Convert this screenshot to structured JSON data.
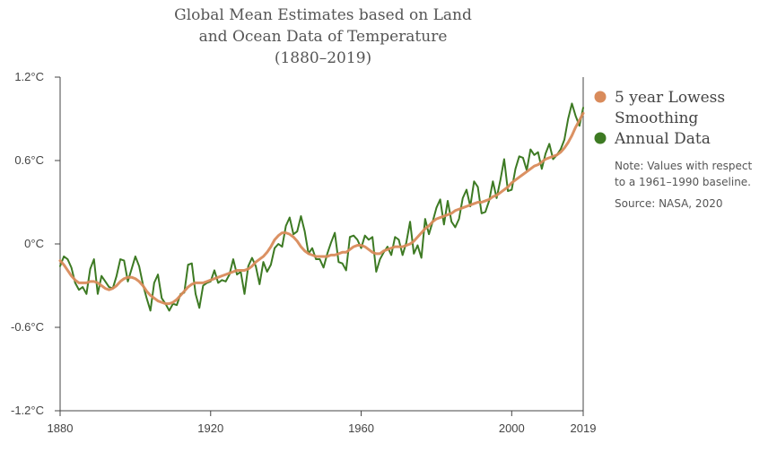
{
  "chart_data": {
    "type": "line",
    "title": [
      "Global Mean Estimates based on Land",
      "and Ocean Data of Temperature",
      "(1880–2019)"
    ],
    "xlabel": "",
    "ylabel": "",
    "xlim": [
      1880,
      2019
    ],
    "ylim": [
      -1.2,
      1.2
    ],
    "x_ticks": [
      {
        "value": 1880,
        "label": "1880"
      },
      {
        "value": 1920,
        "label": "1920"
      },
      {
        "value": 1960,
        "label": "1960"
      },
      {
        "value": 2000,
        "label": "2000"
      },
      {
        "value": 2019,
        "label": "2019"
      }
    ],
    "y_ticks": [
      {
        "value": 1.2,
        "label": "1.2°C"
      },
      {
        "value": 0.6,
        "label": "0.6°C"
      },
      {
        "value": 0,
        "label": "0°C"
      },
      {
        "value": -0.6,
        "label": "-0.6°C"
      },
      {
        "value": -1.2,
        "label": "-1.2°C"
      }
    ],
    "legend_position": "right",
    "grid": false,
    "series": [
      {
        "name": "5 year Lowess Smoothing",
        "color": "#d98b5b",
        "x": [
          1880,
          1881,
          1882,
          1883,
          1884,
          1885,
          1886,
          1887,
          1888,
          1889,
          1890,
          1891,
          1892,
          1893,
          1894,
          1895,
          1896,
          1897,
          1898,
          1899,
          1900,
          1901,
          1902,
          1903,
          1904,
          1905,
          1906,
          1907,
          1908,
          1909,
          1910,
          1911,
          1912,
          1913,
          1914,
          1915,
          1916,
          1917,
          1918,
          1919,
          1920,
          1921,
          1922,
          1923,
          1924,
          1925,
          1926,
          1927,
          1928,
          1929,
          1930,
          1931,
          1932,
          1933,
          1934,
          1935,
          1936,
          1937,
          1938,
          1939,
          1940,
          1941,
          1942,
          1943,
          1944,
          1945,
          1946,
          1947,
          1948,
          1949,
          1950,
          1951,
          1952,
          1953,
          1954,
          1955,
          1956,
          1957,
          1958,
          1959,
          1960,
          1961,
          1962,
          1963,
          1964,
          1965,
          1966,
          1967,
          1968,
          1969,
          1970,
          1971,
          1972,
          1973,
          1974,
          1975,
          1976,
          1977,
          1978,
          1979,
          1980,
          1981,
          1982,
          1983,
          1984,
          1985,
          1986,
          1987,
          1988,
          1989,
          1990,
          1991,
          1992,
          1993,
          1994,
          1995,
          1996,
          1997,
          1998,
          1999,
          2000,
          2001,
          2002,
          2003,
          2004,
          2005,
          2006,
          2007,
          2008,
          2009,
          2010,
          2011,
          2012,
          2013,
          2014,
          2015,
          2016,
          2017,
          2018,
          2019
        ],
        "values": [
          -0.12,
          -0.15,
          -0.19,
          -0.23,
          -0.26,
          -0.28,
          -0.28,
          -0.28,
          -0.27,
          -0.27,
          -0.28,
          -0.3,
          -0.32,
          -0.33,
          -0.32,
          -0.3,
          -0.27,
          -0.25,
          -0.24,
          -0.24,
          -0.25,
          -0.27,
          -0.3,
          -0.34,
          -0.37,
          -0.39,
          -0.41,
          -0.42,
          -0.43,
          -0.43,
          -0.42,
          -0.4,
          -0.37,
          -0.34,
          -0.31,
          -0.29,
          -0.28,
          -0.28,
          -0.28,
          -0.27,
          -0.26,
          -0.25,
          -0.24,
          -0.23,
          -0.22,
          -0.21,
          -0.2,
          -0.19,
          -0.19,
          -0.19,
          -0.18,
          -0.16,
          -0.13,
          -0.11,
          -0.09,
          -0.06,
          -0.02,
          0.03,
          0.06,
          0.08,
          0.08,
          0.07,
          0.05,
          0.02,
          -0.02,
          -0.05,
          -0.07,
          -0.08,
          -0.09,
          -0.09,
          -0.09,
          -0.09,
          -0.08,
          -0.08,
          -0.07,
          -0.06,
          -0.06,
          -0.04,
          -0.02,
          -0.01,
          -0.01,
          -0.02,
          -0.04,
          -0.06,
          -0.07,
          -0.07,
          -0.05,
          -0.04,
          -0.03,
          -0.02,
          -0.02,
          -0.02,
          -0.01,
          0.0,
          0.02,
          0.05,
          0.08,
          0.11,
          0.13,
          0.16,
          0.18,
          0.19,
          0.2,
          0.21,
          0.22,
          0.24,
          0.25,
          0.26,
          0.27,
          0.28,
          0.29,
          0.3,
          0.3,
          0.31,
          0.32,
          0.34,
          0.35,
          0.37,
          0.39,
          0.41,
          0.44,
          0.46,
          0.48,
          0.5,
          0.52,
          0.54,
          0.56,
          0.57,
          0.59,
          0.61,
          0.62,
          0.63,
          0.64,
          0.66,
          0.69,
          0.73,
          0.78,
          0.84,
          0.89,
          0.94
        ]
      },
      {
        "name": "Annual Data",
        "color": "#3d7a23",
        "x": [
          1880,
          1881,
          1882,
          1883,
          1884,
          1885,
          1886,
          1887,
          1888,
          1889,
          1890,
          1891,
          1892,
          1893,
          1894,
          1895,
          1896,
          1897,
          1898,
          1899,
          1900,
          1901,
          1902,
          1903,
          1904,
          1905,
          1906,
          1907,
          1908,
          1909,
          1910,
          1911,
          1912,
          1913,
          1914,
          1915,
          1916,
          1917,
          1918,
          1919,
          1920,
          1921,
          1922,
          1923,
          1924,
          1925,
          1926,
          1927,
          1928,
          1929,
          1930,
          1931,
          1932,
          1933,
          1934,
          1935,
          1936,
          1937,
          1938,
          1939,
          1940,
          1941,
          1942,
          1943,
          1944,
          1945,
          1946,
          1947,
          1948,
          1949,
          1950,
          1951,
          1952,
          1953,
          1954,
          1955,
          1956,
          1957,
          1958,
          1959,
          1960,
          1961,
          1962,
          1963,
          1964,
          1965,
          1966,
          1967,
          1968,
          1969,
          1970,
          1971,
          1972,
          1973,
          1974,
          1975,
          1976,
          1977,
          1978,
          1979,
          1980,
          1981,
          1982,
          1983,
          1984,
          1985,
          1986,
          1987,
          1988,
          1989,
          1990,
          1991,
          1992,
          1993,
          1994,
          1995,
          1996,
          1997,
          1998,
          1999,
          2000,
          2001,
          2002,
          2003,
          2004,
          2005,
          2006,
          2007,
          2008,
          2009,
          2010,
          2011,
          2012,
          2013,
          2014,
          2015,
          2016,
          2017,
          2018,
          2019
        ],
        "values": [
          -0.16,
          -0.09,
          -0.11,
          -0.17,
          -0.28,
          -0.33,
          -0.31,
          -0.36,
          -0.18,
          -0.11,
          -0.36,
          -0.23,
          -0.27,
          -0.31,
          -0.32,
          -0.23,
          -0.11,
          -0.12,
          -0.27,
          -0.18,
          -0.09,
          -0.16,
          -0.29,
          -0.39,
          -0.48,
          -0.28,
          -0.22,
          -0.39,
          -0.43,
          -0.48,
          -0.43,
          -0.44,
          -0.36,
          -0.35,
          -0.15,
          -0.14,
          -0.36,
          -0.46,
          -0.3,
          -0.28,
          -0.27,
          -0.19,
          -0.28,
          -0.26,
          -0.27,
          -0.22,
          -0.11,
          -0.22,
          -0.2,
          -0.36,
          -0.16,
          -0.1,
          -0.16,
          -0.29,
          -0.13,
          -0.2,
          -0.15,
          -0.03,
          -0.0,
          -0.02,
          0.13,
          0.19,
          0.07,
          0.09,
          0.2,
          0.09,
          -0.07,
          -0.03,
          -0.11,
          -0.11,
          -0.17,
          -0.07,
          0.01,
          0.08,
          -0.13,
          -0.14,
          -0.19,
          0.05,
          0.06,
          0.03,
          -0.03,
          0.06,
          0.03,
          0.05,
          -0.2,
          -0.11,
          -0.06,
          -0.02,
          -0.08,
          0.05,
          0.03,
          -0.08,
          0.01,
          0.16,
          -0.07,
          -0.01,
          -0.1,
          0.18,
          0.07,
          0.16,
          0.26,
          0.32,
          0.14,
          0.31,
          0.16,
          0.12,
          0.18,
          0.33,
          0.39,
          0.27,
          0.45,
          0.41,
          0.22,
          0.23,
          0.31,
          0.45,
          0.33,
          0.46,
          0.61,
          0.38,
          0.39,
          0.54,
          0.63,
          0.62,
          0.53,
          0.68,
          0.64,
          0.66,
          0.54,
          0.65,
          0.72,
          0.61,
          0.64,
          0.68,
          0.75,
          0.9,
          1.01,
          0.92,
          0.85,
          0.98
        ]
      }
    ]
  },
  "legend": {
    "smoothing_label_line1": "5 year Lowess",
    "smoothing_label_line2": "Smoothing",
    "annual_label": "Annual Data"
  },
  "notes": {
    "note_line1": "Note: Values with respect",
    "note_line2": "to a 1961–1990 baseline.",
    "source": "Source: NASA, 2020"
  }
}
